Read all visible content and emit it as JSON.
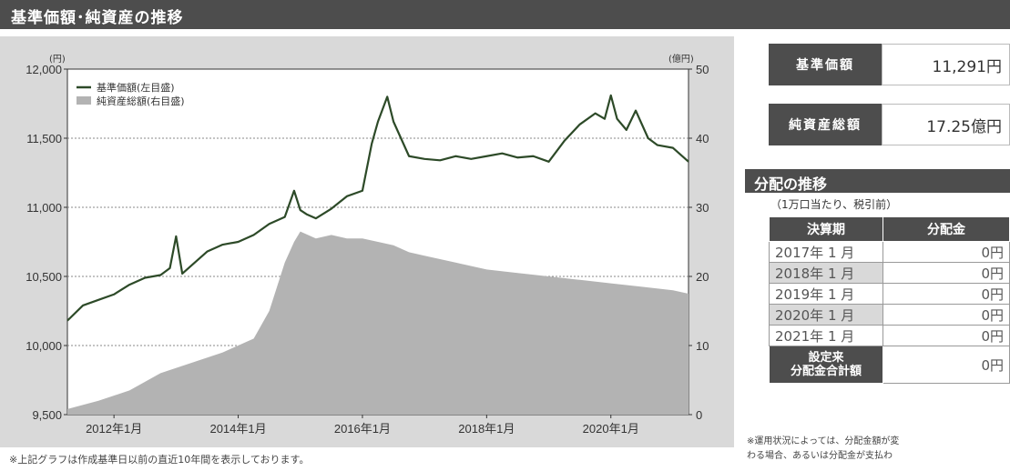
{
  "header": {
    "title": "基準価額･純資産の推移"
  },
  "chart_data": {
    "type": "line",
    "axis_units": {
      "left": "(円)",
      "right": "(億円)"
    },
    "y_left_ticks": [
      "12,000",
      "11,500",
      "11,000",
      "10,500",
      "10,000",
      "9,500"
    ],
    "y_right_ticks": [
      "50",
      "40",
      "30",
      "20",
      "10",
      "0"
    ],
    "x_ticks": [
      "2012年1月",
      "2014年1月",
      "2016年1月",
      "2018年1月",
      "2020年1月"
    ],
    "ylim_left": [
      9500,
      12000
    ],
    "ylim_right": [
      0,
      50
    ],
    "xlim": [
      2011.25,
      2021.25
    ],
    "x_tick_values": [
      2012,
      2014,
      2016,
      2018,
      2020
    ],
    "legend": [
      "基準価額(左目盛)",
      "純資産総額(右目盛)"
    ],
    "legend_position": "top-left",
    "grid": "horizontal dotted",
    "series": [
      {
        "name": "基準価額(左目盛)",
        "color": "#2d4a28",
        "axis": "left",
        "x": [
          2011.25,
          2011.5,
          2011.75,
          2012.0,
          2012.25,
          2012.5,
          2012.75,
          2012.9,
          2013.0,
          2013.1,
          2013.25,
          2013.5,
          2013.75,
          2014.0,
          2014.25,
          2014.5,
          2014.75,
          2014.9,
          2015.0,
          2015.1,
          2015.25,
          2015.5,
          2015.75,
          2016.0,
          2016.15,
          2016.25,
          2016.4,
          2016.5,
          2016.75,
          2017.0,
          2017.25,
          2017.5,
          2017.75,
          2018.0,
          2018.25,
          2018.5,
          2018.75,
          2019.0,
          2019.25,
          2019.5,
          2019.75,
          2019.9,
          2020.0,
          2020.1,
          2020.25,
          2020.4,
          2020.6,
          2020.75,
          2021.0,
          2021.25
        ],
        "values": [
          10180,
          10290,
          10330,
          10370,
          10440,
          10490,
          10510,
          10560,
          10790,
          10520,
          10580,
          10680,
          10730,
          10750,
          10800,
          10880,
          10930,
          11120,
          10980,
          10950,
          10920,
          10990,
          11080,
          11120,
          11460,
          11620,
          11800,
          11620,
          11370,
          11350,
          11340,
          11370,
          11350,
          11370,
          11390,
          11360,
          11370,
          11330,
          11480,
          11600,
          11680,
          11640,
          11810,
          11640,
          11560,
          11700,
          11500,
          11450,
          11430,
          11330
        ]
      },
      {
        "name": "純資産総額(右目盛)",
        "color": "#b3b3b3",
        "axis": "right",
        "x": [
          2011.25,
          2011.75,
          2012.25,
          2012.75,
          2013.25,
          2013.75,
          2014.25,
          2014.5,
          2014.75,
          2014.9,
          2015.0,
          2015.25,
          2015.5,
          2015.75,
          2016.0,
          2016.25,
          2016.5,
          2016.75,
          2017.0,
          2017.5,
          2018.0,
          2018.5,
          2019.0,
          2019.5,
          2020.0,
          2020.5,
          2021.0,
          2021.25
        ],
        "values": [
          0.8,
          2,
          3.5,
          6,
          7.5,
          9,
          11,
          15,
          22,
          25,
          26.5,
          25.5,
          26,
          25.5,
          25.5,
          25,
          24.5,
          23.5,
          23,
          22,
          21,
          20.5,
          20,
          19.5,
          19,
          18.5,
          18,
          17.5
        ]
      }
    ]
  },
  "chart_footnote": "※上記グラフは作成基準日以前の直近10年間を表示しております。",
  "stats": [
    {
      "label": "基準価額",
      "value": "11,291円"
    },
    {
      "label": "純資産総額",
      "value": "17.25億円"
    }
  ],
  "distribution": {
    "title": "分配の推移",
    "note": "（1万口当たり、税引前）",
    "columns": [
      "決算期",
      "分配金"
    ],
    "rows": [
      {
        "period": "2017年 1 月",
        "amount": "0円"
      },
      {
        "period": "2018年 1 月",
        "amount": "0円"
      },
      {
        "period": "2019年 1 月",
        "amount": "0円"
      },
      {
        "period": "2020年 1 月",
        "amount": "0円"
      },
      {
        "period": "2021年 1 月",
        "amount": "0円"
      }
    ],
    "total_label_line1": "設定来",
    "total_label_line2": "分配金合計額",
    "total_amount": "0円",
    "footnote_line1": "※運用状況によっては、分配金額が変",
    "footnote_line2": "わる場合、あるいは分配金が支払わ"
  }
}
